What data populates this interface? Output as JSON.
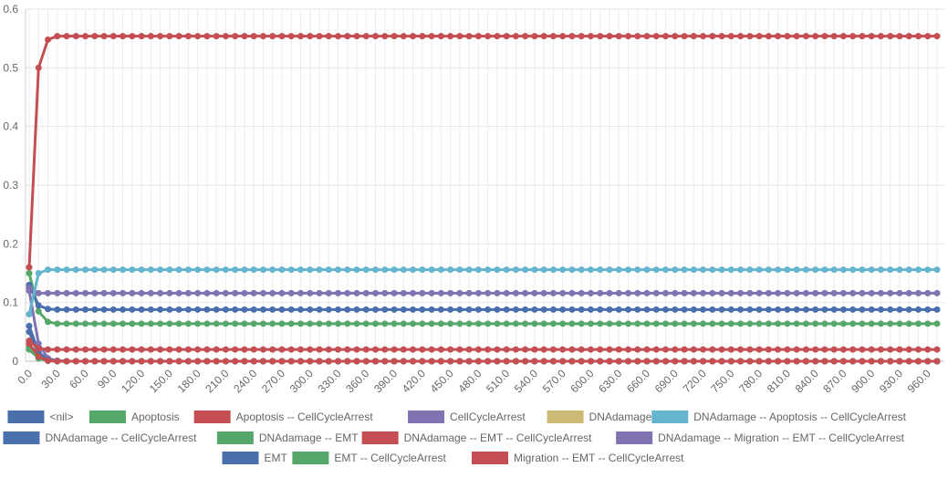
{
  "chart_data": {
    "type": "line",
    "x_start": 0,
    "x_step": 10,
    "x_end": 970,
    "x_tick_step": 30,
    "x_tick_labels": [
      "0.0",
      "30.0",
      "60.0",
      "90.0",
      "120.0",
      "150.0",
      "180.0",
      "210.0",
      "240.0",
      "270.0",
      "300.0",
      "330.0",
      "360.0",
      "390.0",
      "420.0",
      "450.0",
      "480.0",
      "510.0",
      "540.0",
      "570.0",
      "600.0",
      "630.0",
      "660.0",
      "690.0",
      "720.0",
      "750.0",
      "780.0",
      "810.0",
      "840.0",
      "870.0",
      "900.0",
      "930.0",
      "960.0"
    ],
    "y_tick_labels": [
      "0",
      "0.1",
      "0.2",
      "0.3",
      "0.4",
      "0.5",
      "0.6"
    ],
    "ylim": [
      0,
      0.6
    ],
    "grid": true,
    "legend_position": "bottom",
    "series": [
      {
        "name": "<nil>",
        "color": "#4a6fad",
        "early": [
          0.06,
          0.015,
          0.003,
          0.001
        ],
        "steady": 0
      },
      {
        "name": "Apoptosis",
        "color": "#55a868",
        "early": [
          0.02,
          0.005,
          0.001,
          0.0
        ],
        "steady": 0
      },
      {
        "name": "Apoptosis -- CellCycleArrest",
        "color": "#c44e52",
        "early": [
          0.16,
          0.5,
          0.548,
          0.554
        ],
        "steady": 0.554
      },
      {
        "name": "CellCycleArrest",
        "color": "#8172b2",
        "early": [
          0.12,
          0.03,
          0.005,
          0.001
        ],
        "steady": 0
      },
      {
        "name": "DNAdamage",
        "color": "#ccb974",
        "early": [
          0.03,
          0.007,
          0.001,
          0.0
        ],
        "steady": 0
      },
      {
        "name": "DNAdamage -- Apoptosis -- CellCycleArrest",
        "color": "#64b5cd",
        "early": [
          0.08,
          0.15,
          0.156,
          0.156
        ],
        "steady": 0.156
      },
      {
        "name": "DNAdamage -- CellCycleArrest",
        "color": "#4a6fad",
        "early": [
          0.13,
          0.095,
          0.089,
          0.088
        ],
        "steady": 0.088
      },
      {
        "name": "DNAdamage -- EMT",
        "color": "#55a868",
        "early": [
          0.15,
          0.085,
          0.067,
          0.064
        ],
        "steady": 0.064
      },
      {
        "name": "DNAdamage -- EMT -- CellCycleArrest",
        "color": "#c44e52",
        "early": [
          0.035,
          0.022,
          0.02,
          0.02
        ],
        "steady": 0.02
      },
      {
        "name": "DNAdamage -- Migration -- EMT -- CellCycleArrest",
        "color": "#8172b2",
        "early": [
          0.125,
          0.116,
          0.116,
          0.116
        ],
        "steady": 0.116
      },
      {
        "name": "EMT",
        "color": "#4a6fad",
        "early": [
          0.05,
          0.012,
          0.002,
          0.0
        ],
        "steady": 0
      },
      {
        "name": "EMT -- CellCycleArrest",
        "color": "#55a868",
        "early": [
          0.025,
          0.006,
          0.001,
          0.0
        ],
        "steady": 0
      },
      {
        "name": "Migration -- EMT -- CellCycleArrest",
        "color": "#c44e52",
        "early": [
          0.03,
          0.008,
          0.001,
          0.0
        ],
        "steady": 0
      }
    ]
  }
}
